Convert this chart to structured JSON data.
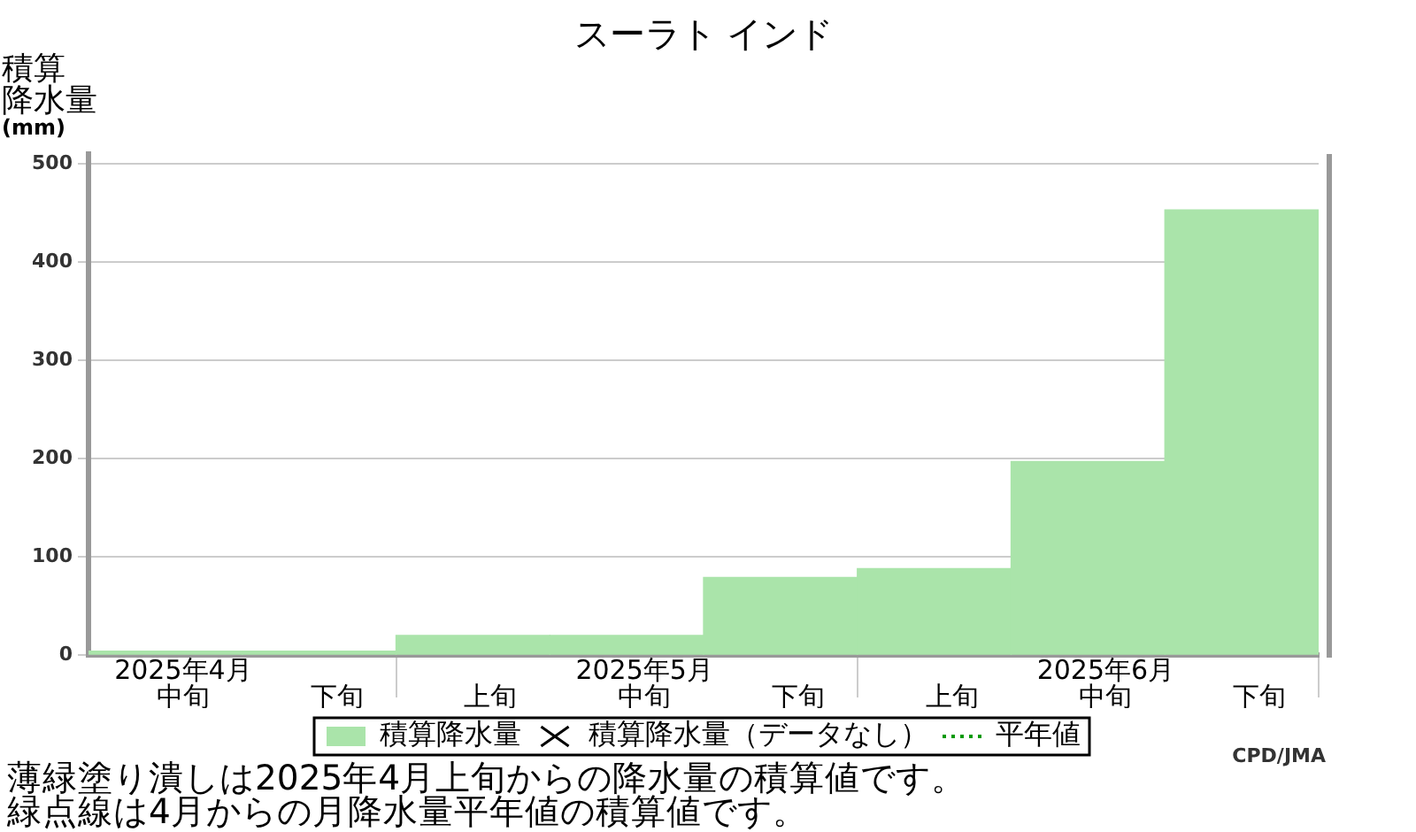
{
  "chart_data": {
    "type": "bar",
    "title": "スーラト インド",
    "ylabel": "積算降水量 (mm)",
    "categories": [
      "2025年4月中旬",
      "下旬",
      "上旬",
      "2025年5月中旬",
      "下旬",
      "上旬",
      "2025年6月中旬",
      "下旬"
    ],
    "series": [
      {
        "name": "積算降水量",
        "color": "#aae4aa",
        "values": [
          4,
          4,
          20,
          20,
          79,
          88,
          197,
          453
        ]
      },
      {
        "name": "積算降水量（データなし）",
        "type": "scatter",
        "marker": "cross",
        "color": "#000000",
        "values": [
          null,
          null,
          null,
          null,
          null,
          null,
          null,
          null
        ]
      },
      {
        "name": "平年値",
        "type": "line",
        "marker": "none",
        "line_style": "dotted",
        "color": "#009900",
        "values": [
          null,
          null,
          null,
          null,
          null,
          null,
          null,
          null
        ]
      }
    ],
    "ylim": [
      0,
      510
    ],
    "yticks": [
      0,
      100,
      200,
      300,
      400,
      500
    ],
    "grid": "y",
    "legend": "bottom",
    "annotations": [
      "CPD/JMA",
      "薄緑塗り潰しは2025年4月上旬からの降水量の積算値です。",
      "緑点線は4月からの月降水量平年値の積算値です。"
    ]
  }
}
